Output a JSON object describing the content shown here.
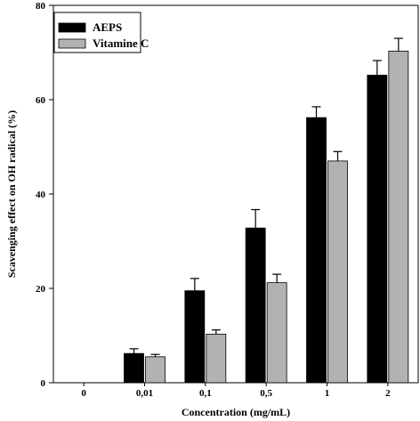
{
  "chart_data": {
    "type": "bar",
    "title": "",
    "xlabel": "Concentration (mg/mL)",
    "ylabel": "Scavenging effect on OH radical (%)",
    "categories": [
      "0",
      "0,01",
      "0,1",
      "0,5",
      "1",
      "2"
    ],
    "ylim": [
      0,
      80
    ],
    "yticks": [
      "0",
      "20",
      "40",
      "60",
      "80"
    ],
    "grid": false,
    "legend_position": "top-left",
    "series": [
      {
        "name": "AEPS",
        "color": "#000000",
        "values": [
          0,
          6.2,
          19.5,
          32.8,
          56.2,
          65.2
        ],
        "errors": [
          0,
          1.0,
          2.6,
          3.9,
          2.3,
          3.1
        ]
      },
      {
        "name": "Vitamine C",
        "color": "#b2b2b2",
        "values": [
          0,
          5.5,
          10.3,
          21.2,
          47.0,
          70.3
        ],
        "errors": [
          0,
          0.5,
          0.9,
          1.8,
          2.0,
          2.7
        ]
      }
    ]
  }
}
